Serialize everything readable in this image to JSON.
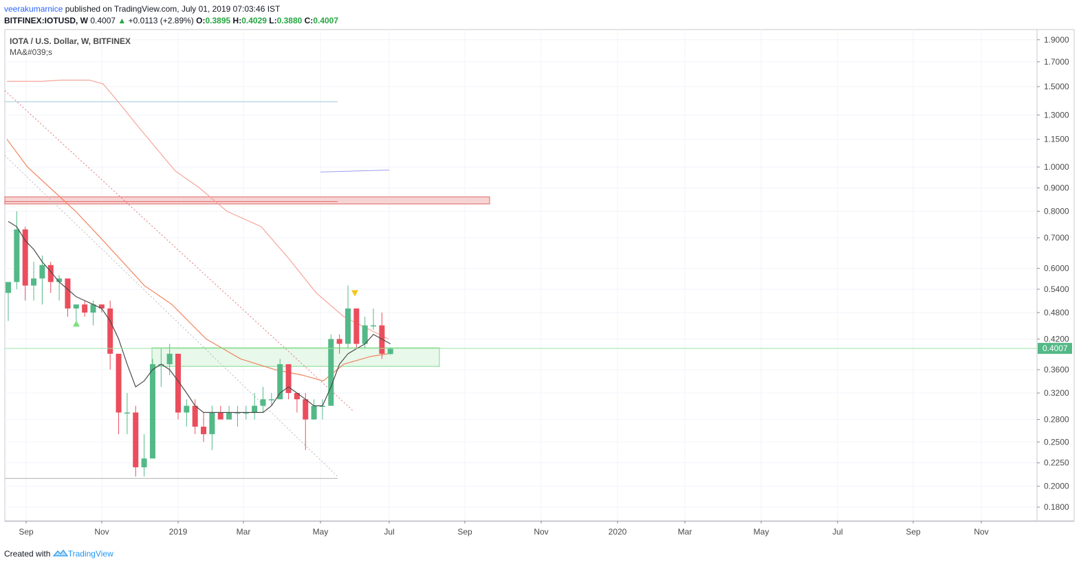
{
  "header": {
    "author": "veerakumarnice",
    "published_text": "published on TradingView.com, July 01, 2019 07:03:46 IST",
    "symbol": "BITFINEX:IOTUSD, W",
    "last": "0.4007",
    "change": "+0.0113 (+2.89%)",
    "o_label": "O:",
    "o_value": "0.3895",
    "h_label": "H:",
    "h_value": "0.4029",
    "l_label": "L:",
    "l_value": "0.3880",
    "c_label": "C:",
    "c_value": "0.4007"
  },
  "legend": {
    "title": "IOTA / U.S. Dollar, W, BITFINEX",
    "indicator": "MA&#039;s"
  },
  "footer": {
    "created_with": "Created with",
    "brand": "TradingView"
  },
  "colors": {
    "up": "#53b987",
    "down": "#eb4d5c",
    "grid": "#f0f3fa",
    "ma_fast": "#4a4a4a",
    "ma_mid": "#f0845d",
    "ma_slow": "#f7a49a",
    "price_line": "#9be5a4",
    "price_label_bg": "#53b987"
  },
  "chart_data": {
    "type": "candlestick",
    "title": "IOTA / U.S. Dollar, W, BITFINEX",
    "y_scale": "log",
    "ylim": [
      0.168,
      2.0
    ],
    "y_ticks": [
      "1.9000",
      "1.7000",
      "1.5000",
      "1.3000",
      "1.1500",
      "1.0000",
      "0.9000",
      "0.8000",
      "0.7000",
      "0.6000",
      "0.5400",
      "0.4800",
      "0.4200",
      "0.3600",
      "0.3200",
      "0.2800",
      "0.2500",
      "0.2250",
      "0.2000",
      "0.1800"
    ],
    "x_ticks": [
      "Sep",
      "Nov",
      "2019",
      "Mar",
      "May",
      "Jul",
      "Sep",
      "Nov",
      "2020",
      "Mar",
      "May",
      "Jul",
      "Sep",
      "Nov"
    ],
    "current_price_label": "0.4007",
    "candles": [
      {
        "o": 0.53,
        "h": 0.56,
        "l": 0.46,
        "c": 0.56
      },
      {
        "o": 0.56,
        "h": 0.8,
        "l": 0.54,
        "c": 0.73
      },
      {
        "o": 0.73,
        "h": 0.74,
        "l": 0.51,
        "c": 0.55
      },
      {
        "o": 0.55,
        "h": 0.62,
        "l": 0.51,
        "c": 0.57
      },
      {
        "o": 0.57,
        "h": 0.64,
        "l": 0.5,
        "c": 0.61
      },
      {
        "o": 0.61,
        "h": 0.62,
        "l": 0.53,
        "c": 0.56
      },
      {
        "o": 0.56,
        "h": 0.58,
        "l": 0.51,
        "c": 0.57
      },
      {
        "o": 0.57,
        "h": 0.57,
        "l": 0.47,
        "c": 0.49
      },
      {
        "o": 0.49,
        "h": 0.5,
        "l": 0.46,
        "c": 0.5
      },
      {
        "o": 0.5,
        "h": 0.51,
        "l": 0.47,
        "c": 0.48
      },
      {
        "o": 0.48,
        "h": 0.51,
        "l": 0.45,
        "c": 0.5
      },
      {
        "o": 0.5,
        "h": 0.5,
        "l": 0.48,
        "c": 0.49
      },
      {
        "o": 0.49,
        "h": 0.51,
        "l": 0.36,
        "c": 0.39
      },
      {
        "o": 0.39,
        "h": 0.39,
        "l": 0.26,
        "c": 0.29
      },
      {
        "o": 0.29,
        "h": 0.32,
        "l": 0.26,
        "c": 0.29
      },
      {
        "o": 0.29,
        "h": 0.3,
        "l": 0.21,
        "c": 0.22
      },
      {
        "o": 0.22,
        "h": 0.26,
        "l": 0.21,
        "c": 0.23
      },
      {
        "o": 0.23,
        "h": 0.38,
        "l": 0.23,
        "c": 0.37
      },
      {
        "o": 0.37,
        "h": 0.4,
        "l": 0.33,
        "c": 0.37
      },
      {
        "o": 0.37,
        "h": 0.41,
        "l": 0.35,
        "c": 0.39
      },
      {
        "o": 0.39,
        "h": 0.39,
        "l": 0.28,
        "c": 0.29
      },
      {
        "o": 0.29,
        "h": 0.31,
        "l": 0.27,
        "c": 0.3
      },
      {
        "o": 0.3,
        "h": 0.31,
        "l": 0.26,
        "c": 0.27
      },
      {
        "o": 0.27,
        "h": 0.29,
        "l": 0.25,
        "c": 0.26
      },
      {
        "o": 0.26,
        "h": 0.3,
        "l": 0.24,
        "c": 0.29
      },
      {
        "o": 0.29,
        "h": 0.3,
        "l": 0.28,
        "c": 0.28
      },
      {
        "o": 0.28,
        "h": 0.3,
        "l": 0.28,
        "c": 0.29
      },
      {
        "o": 0.29,
        "h": 0.3,
        "l": 0.27,
        "c": 0.29
      },
      {
        "o": 0.29,
        "h": 0.3,
        "l": 0.28,
        "c": 0.29
      },
      {
        "o": 0.29,
        "h": 0.32,
        "l": 0.28,
        "c": 0.3
      },
      {
        "o": 0.3,
        "h": 0.33,
        "l": 0.29,
        "c": 0.31
      },
      {
        "o": 0.31,
        "h": 0.32,
        "l": 0.3,
        "c": 0.31
      },
      {
        "o": 0.31,
        "h": 0.38,
        "l": 0.31,
        "c": 0.37
      },
      {
        "o": 0.37,
        "h": 0.37,
        "l": 0.31,
        "c": 0.32
      },
      {
        "o": 0.32,
        "h": 0.32,
        "l": 0.29,
        "c": 0.31
      },
      {
        "o": 0.31,
        "h": 0.32,
        "l": 0.24,
        "c": 0.28
      },
      {
        "o": 0.28,
        "h": 0.31,
        "l": 0.28,
        "c": 0.3
      },
      {
        "o": 0.3,
        "h": 0.31,
        "l": 0.28,
        "c": 0.3
      },
      {
        "o": 0.3,
        "h": 0.43,
        "l": 0.3,
        "c": 0.42
      },
      {
        "o": 0.42,
        "h": 0.43,
        "l": 0.39,
        "c": 0.41
      },
      {
        "o": 0.41,
        "h": 0.55,
        "l": 0.4,
        "c": 0.49
      },
      {
        "o": 0.49,
        "h": 0.49,
        "l": 0.4,
        "c": 0.41
      },
      {
        "o": 0.41,
        "h": 0.47,
        "l": 0.4,
        "c": 0.45
      },
      {
        "o": 0.45,
        "h": 0.49,
        "l": 0.44,
        "c": 0.45
      },
      {
        "o": 0.45,
        "h": 0.48,
        "l": 0.38,
        "c": 0.39
      },
      {
        "o": 0.3895,
        "h": 0.4029,
        "l": 0.388,
        "c": 0.4007
      }
    ],
    "ma_fast": [
      0.76,
      0.74,
      0.69,
      0.66,
      0.62,
      0.59,
      0.56,
      0.54,
      0.52,
      0.51,
      0.5,
      0.49,
      0.46,
      0.42,
      0.37,
      0.33,
      0.34,
      0.36,
      0.37,
      0.36,
      0.34,
      0.32,
      0.3,
      0.29,
      0.29,
      0.29,
      0.29,
      0.29,
      0.29,
      0.29,
      0.29,
      0.3,
      0.32,
      0.33,
      0.32,
      0.31,
      0.3,
      0.3,
      0.33,
      0.37,
      0.39,
      0.4,
      0.41,
      0.43,
      0.42,
      0.41
    ]
  }
}
